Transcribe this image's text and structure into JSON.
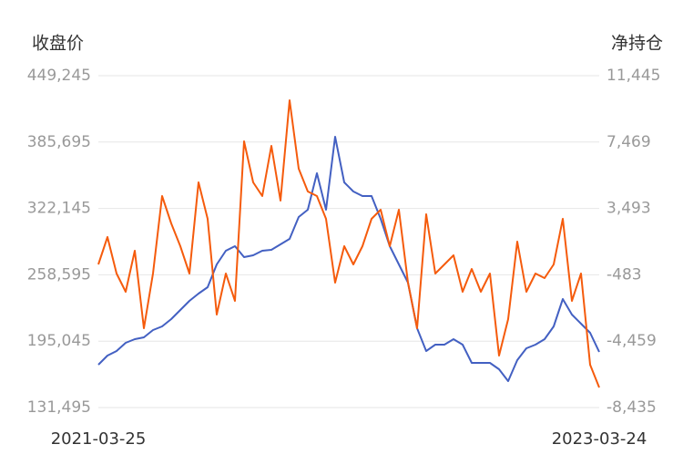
{
  "chart_data": {
    "type": "line",
    "ylabel": "收盘价",
    "y2label": "净持仓",
    "categories": [
      "2021-03-25",
      null,
      null,
      null,
      null,
      null,
      null,
      null,
      null,
      null,
      null,
      null,
      null,
      null,
      null,
      null,
      null,
      null,
      null,
      null,
      null,
      null,
      null,
      null,
      null,
      null,
      null,
      null,
      null,
      null,
      null,
      null,
      null,
      null,
      null,
      null,
      null,
      null,
      null,
      null,
      null,
      null,
      null,
      null,
      null,
      null,
      null,
      null,
      null,
      null,
      null,
      null,
      null,
      null,
      null,
      "2023-03-24"
    ],
    "series": [
      {
        "color": "#4360c2",
        "axis": "y",
        "values": [
          172523,
          181253,
          185617,
          193474,
          196965,
          198711,
          205695,
          209187,
          216170,
          224900,
          233629,
          240612,
          246723,
          268547,
          281641,
          286005,
          275530,
          277276,
          281641,
          282514,
          287751,
          292989,
          313939,
          320923,
          355841,
          320923,
          390758,
          347111,
          338382,
          334017,
          334017,
          312194,
          286005,
          268547,
          251088,
          207441,
          185617,
          191728,
          191728,
          196965,
          191728,
          174269,
          174269,
          174269,
          168158,
          156810,
          176888,
          188236,
          191728,
          196965,
          209187,
          235375,
          220535,
          211805,
          203076,
          184744
        ]
      },
      {
        "color": "#f55b0c",
        "axis": "y2",
        "values": [
          140,
          1778,
          -407,
          -1499,
          959,
          -3684,
          -407,
          4236,
          2597,
          1232,
          -407,
          5055,
          2870,
          -2864,
          -407,
          -2045,
          7513,
          5055,
          4236,
          7240,
          3963,
          9970,
          5874,
          4509,
          4236,
          2870,
          -953,
          1232,
          140,
          1232,
          2870,
          3416,
          1232,
          3416,
          -953,
          -3684,
          3143,
          -407,
          140,
          686,
          -1499,
          -134,
          -1499,
          -407,
          -5322,
          -3137,
          1505,
          -1499,
          -407,
          -680,
          140,
          2870,
          -2045,
          -407,
          -5868,
          -7233
        ]
      }
    ],
    "ylim": [
      131495,
      449245
    ],
    "yticks": [
      {
        "value": 131495,
        "label": "131,495"
      },
      {
        "value": 195045,
        "label": "195,045"
      },
      {
        "value": 258595,
        "label": "258,595"
      },
      {
        "value": 322145,
        "label": "322,145"
      },
      {
        "value": 385695,
        "label": "385,695"
      },
      {
        "value": 449245,
        "label": "449,245"
      }
    ],
    "y2lim": [
      -8435,
      11445
    ],
    "y2ticks": [
      {
        "value": -8435,
        "label": "-8,435"
      },
      {
        "value": -4459,
        "label": "-4,459"
      },
      -483,
      {
        "value": 3493,
        "label": "3,493"
      },
      {
        "value": 7469,
        "label": "7,469"
      },
      {
        "value": 11445,
        "label": "11,445"
      }
    ],
    "grid": true
  }
}
